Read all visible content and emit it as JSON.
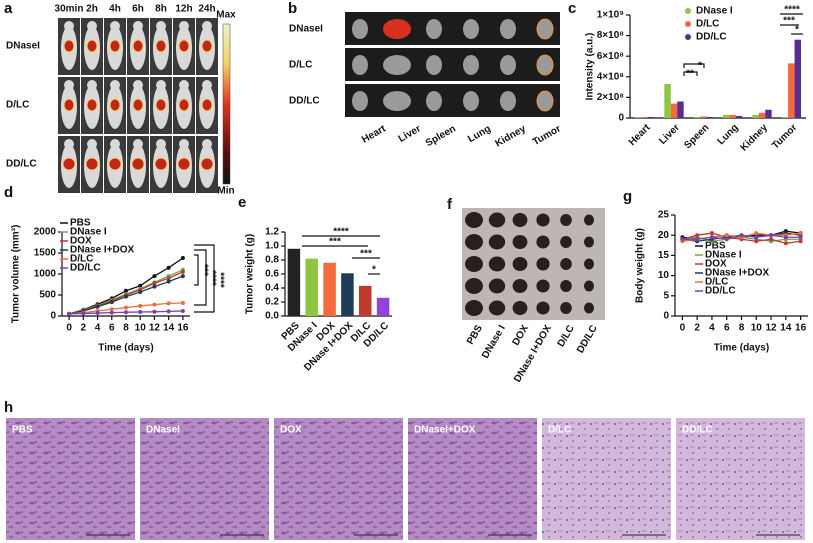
{
  "panels": {
    "a": {
      "label": "a",
      "columns": [
        "30min",
        "2h",
        "4h",
        "6h",
        "8h",
        "12h",
        "24h"
      ],
      "rows": [
        "DNaseI",
        "D/LC",
        "DD/LC"
      ],
      "colorbar_max": "Max",
      "colorbar_min": "Min"
    },
    "b": {
      "label": "b",
      "rows": [
        "DNaseI",
        "D/LC",
        "DD/LC"
      ],
      "organs": [
        "Heart",
        "Liver",
        "Spleen",
        "Lung",
        "Kidney",
        "Tumor"
      ]
    },
    "f": {
      "label": "f",
      "groups": [
        "PBS",
        "DNase I",
        "DOX",
        "DNase I+DOX",
        "D/LC",
        "DD/LC"
      ]
    },
    "h": {
      "label": "h",
      "images": [
        "PBS",
        "DNaseI",
        "DOX",
        "DNaseI+DOX",
        "D/LC",
        "DD/LC"
      ]
    }
  },
  "chart_data": [
    {
      "type": "bar",
      "panel_label": "c",
      "ylabel": "Intensity (a.u.)",
      "categories": [
        "Heart",
        "Liver",
        "Speen",
        "Lung",
        "Kidney",
        "Tumor"
      ],
      "series": [
        {
          "name": "DNase I",
          "color": "#8dc63f",
          "values": [
            5000000,
            330000000,
            10000000,
            30000000,
            30000000,
            10000000
          ]
        },
        {
          "name": "D/LC",
          "color": "#f26a3d",
          "values": [
            10000000,
            140000000,
            15000000,
            30000000,
            50000000,
            530000000
          ]
        },
        {
          "name": "DD/LC",
          "color": "#5a2d91",
          "values": [
            10000000,
            160000000,
            10000000,
            20000000,
            80000000,
            760000000
          ]
        }
      ],
      "ylim": [
        0,
        1000000000
      ],
      "yticks": [
        0,
        {
          "value": 200000000,
          "label": "2×10⁸"
        },
        {
          "value": 400000000,
          "label": "4×10⁸"
        },
        {
          "value": 600000000,
          "label": "6×10⁸"
        },
        {
          "value": 800000000,
          "label": "8×10⁸"
        },
        {
          "value": 1000000000,
          "label": "1×10⁹"
        }
      ],
      "legend": "upper-right",
      "annotations": [
        "**",
        "*",
        "****",
        "***",
        "*"
      ]
    },
    {
      "type": "line",
      "panel_label": "d",
      "xlabel": "Time (days)",
      "ylabel": "Tumor volume (mm³)",
      "x": [
        0,
        2,
        4,
        6,
        8,
        10,
        12,
        14,
        16
      ],
      "series": [
        {
          "name": "PBS",
          "color": "#111111",
          "values": [
            50,
            150,
            280,
            420,
            600,
            720,
            950,
            1150,
            1380
          ]
        },
        {
          "name": "DNase I",
          "color": "#6aa84f",
          "values": [
            50,
            140,
            250,
            380,
            520,
            650,
            800,
            950,
            1100
          ]
        },
        {
          "name": "DOX",
          "color": "#c0392b",
          "values": [
            50,
            130,
            240,
            360,
            500,
            620,
            780,
            900,
            1050
          ]
        },
        {
          "name": "DNase I+DOX",
          "color": "#1f3b5a",
          "values": [
            50,
            120,
            220,
            330,
            460,
            570,
            700,
            820,
            950
          ]
        },
        {
          "name": "D/LC",
          "color": "#f26a3d",
          "values": [
            50,
            80,
            120,
            160,
            200,
            240,
            270,
            300,
            310
          ]
        },
        {
          "name": "DD/LC",
          "color": "#7b3fb5",
          "values": [
            50,
            60,
            70,
            80,
            90,
            95,
            100,
            110,
            120
          ]
        }
      ],
      "xlim": [
        -1,
        17
      ],
      "xticks": [
        0,
        2,
        4,
        6,
        8,
        10,
        12,
        14,
        16
      ],
      "ylim": [
        0,
        2000
      ],
      "yticks": [
        0,
        500,
        1000,
        1500,
        2000
      ],
      "legend": "upper-left",
      "annotations": [
        "***",
        "****",
        "****"
      ]
    },
    {
      "type": "bar",
      "panel_label": "e",
      "ylabel": "Tumor weight (g)",
      "categories": [
        "PBS",
        "DNase I",
        "DOX",
        "DNase I+DOX",
        "D/LC",
        "DD/LC"
      ],
      "values": [
        0.96,
        0.82,
        0.76,
        0.61,
        0.43,
        0.26
      ],
      "colors": [
        "#222222",
        "#8dc63f",
        "#f26a3d",
        "#1f3b5a",
        "#c0392b",
        "#8e44d6"
      ],
      "ylim": [
        0,
        1.2
      ],
      "yticks": [
        {
          "value": 0,
          "label": "0.0"
        },
        0.2,
        0.4,
        0.6,
        0.8,
        {
          "value": 1,
          "label": "1.0"
        },
        1.2
      ],
      "annotations": [
        "****",
        "***",
        "***",
        "*"
      ]
    },
    {
      "type": "line",
      "panel_label": "g",
      "xlabel": "Time (days)",
      "ylabel": "Body weight (g)",
      "x": [
        0,
        2,
        4,
        6,
        8,
        10,
        12,
        14,
        16
      ],
      "series": [
        {
          "name": "PBS",
          "color": "#111111",
          "values": [
            19.5,
            19,
            19.5,
            20,
            19.5,
            20,
            20,
            21,
            20.5
          ]
        },
        {
          "name": "DNase I",
          "color": "#6aa84f",
          "values": [
            19,
            19.5,
            18.5,
            19,
            19.5,
            19,
            18.5,
            19,
            19
          ]
        },
        {
          "name": "DOX",
          "color": "#c0392b",
          "values": [
            19,
            20,
            20.5,
            19.5,
            19,
            18.5,
            19,
            18,
            18.5
          ]
        },
        {
          "name": "DNase I+DOX",
          "color": "#1f3b5a",
          "values": [
            19,
            18.5,
            19,
            19.5,
            20,
            19.5,
            20,
            20.5,
            20
          ]
        },
        {
          "name": "D/LC",
          "color": "#f26a3d",
          "values": [
            18.5,
            19,
            19.5,
            20,
            19.5,
            20.5,
            20,
            20,
            20.5
          ]
        },
        {
          "name": "DD/LC",
          "color": "#7b3fb5",
          "values": [
            19,
            19,
            19.5,
            19,
            20,
            19.5,
            20,
            19.5,
            19.5
          ]
        }
      ],
      "xlim": [
        -1,
        17
      ],
      "xticks": [
        0,
        2,
        4,
        6,
        8,
        10,
        12,
        14,
        16
      ],
      "ylim": [
        0,
        25
      ],
      "yticks": [
        0,
        5,
        10,
        15,
        20,
        25
      ],
      "legend": "lower-right"
    }
  ]
}
